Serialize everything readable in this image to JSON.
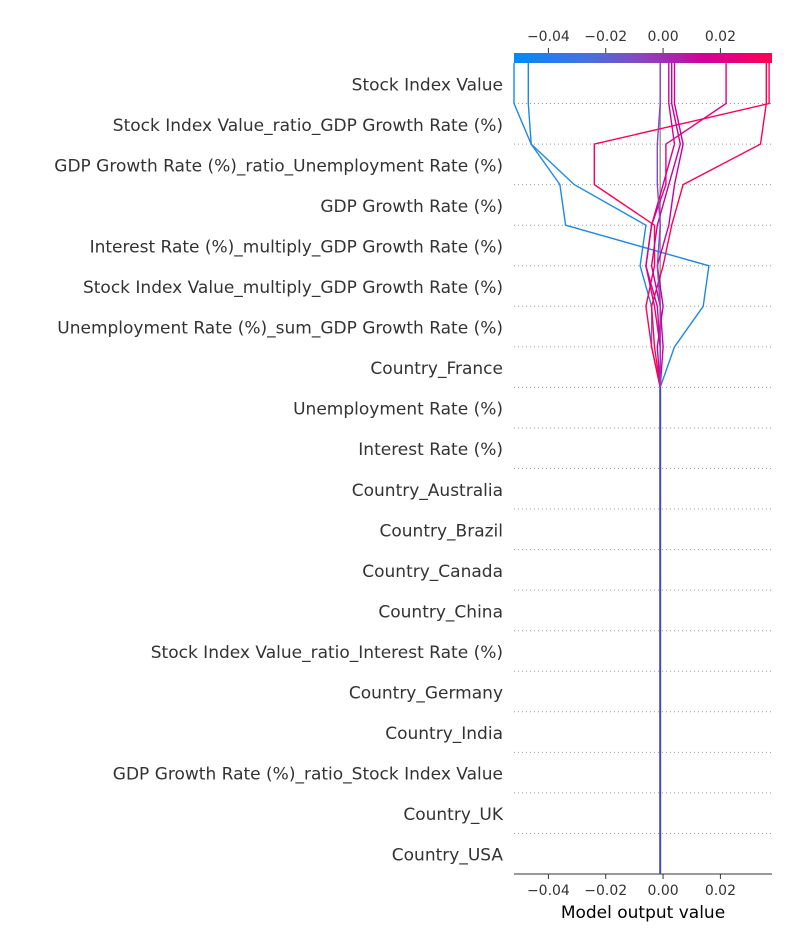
{
  "chart_data": {
    "type": "line",
    "subtype": "shap-decision-plot",
    "title": "",
    "xlabel": "Model output value",
    "ylabel": "",
    "xlim": [
      -0.052,
      0.038
    ],
    "xticks": [
      -0.04,
      -0.02,
      0.0,
      0.02
    ],
    "tick_labels": [
      "−0.04",
      "−0.02",
      "0.00",
      "0.02"
    ],
    "base_value": -0.001,
    "colormap": [
      "#008bfb",
      "#ff0052"
    ],
    "features": [
      "Stock Index Value",
      "Stock Index Value_ratio_GDP Growth Rate (%)",
      "GDP Growth Rate (%)_ratio_Unemployment Rate (%)",
      "GDP Growth Rate (%)",
      "Interest Rate (%)_multiply_GDP Growth Rate (%)",
      "Stock Index Value_multiply_GDP Growth Rate (%)",
      "Unemployment Rate (%)_sum_GDP Growth Rate (%)",
      "Country_France",
      "Unemployment Rate (%)",
      "Interest Rate (%)",
      "Country_Australia",
      "Country_Brazil",
      "Country_Canada",
      "Country_China",
      "Stock Index Value_ratio_Interest Rate (%)",
      "Country_Germany",
      "Country_India",
      "GDP Growth Rate (%)_ratio_Stock Index Value",
      "Country_UK",
      "Country_USA"
    ],
    "series": [
      {
        "color": "#1e88e5",
        "final": -0.052,
        "path": [
          -0.052,
          -0.046,
          -0.031,
          -0.006,
          -0.008,
          -0.004,
          -0.004
        ]
      },
      {
        "color": "#1e88e5",
        "final": -0.047,
        "path": [
          -0.047,
          -0.046,
          -0.036,
          -0.034,
          0.016,
          0.014,
          0.004
        ]
      },
      {
        "color": "#ff0052",
        "final": 0.036,
        "path": [
          0.036,
          0.034,
          0.007,
          0.003,
          0.0,
          -0.004,
          -0.003
        ]
      },
      {
        "color": "#ff0052",
        "final": 0.037,
        "path": [
          0.037,
          -0.024,
          -0.024,
          -0.003,
          -0.003,
          -0.006,
          -0.004
        ]
      },
      {
        "color": "#e4007f",
        "final": 0.022,
        "path": [
          0.022,
          0.001,
          0.001,
          -0.004,
          -0.006,
          -0.003,
          -0.001
        ]
      },
      {
        "color": "#c8009c",
        "final": 0.004,
        "path": [
          0.004,
          0.007,
          0.004,
          0.002,
          -0.002,
          0.0,
          -0.002
        ]
      },
      {
        "color": "#c8009c",
        "final": 0.003,
        "path": [
          0.003,
          0.006,
          0.002,
          -0.002,
          -0.004,
          -0.001,
          0.0
        ]
      },
      {
        "color": "#d5008d",
        "final": 0.002,
        "path": [
          0.002,
          0.004,
          0.0,
          -0.004,
          -0.006,
          -0.002,
          -0.001
        ]
      },
      {
        "color": "#8a44c4",
        "final": -0.001,
        "path": [
          -0.001,
          -0.002,
          -0.002,
          -0.001,
          -0.002,
          -0.001,
          -0.001
        ]
      }
    ]
  }
}
